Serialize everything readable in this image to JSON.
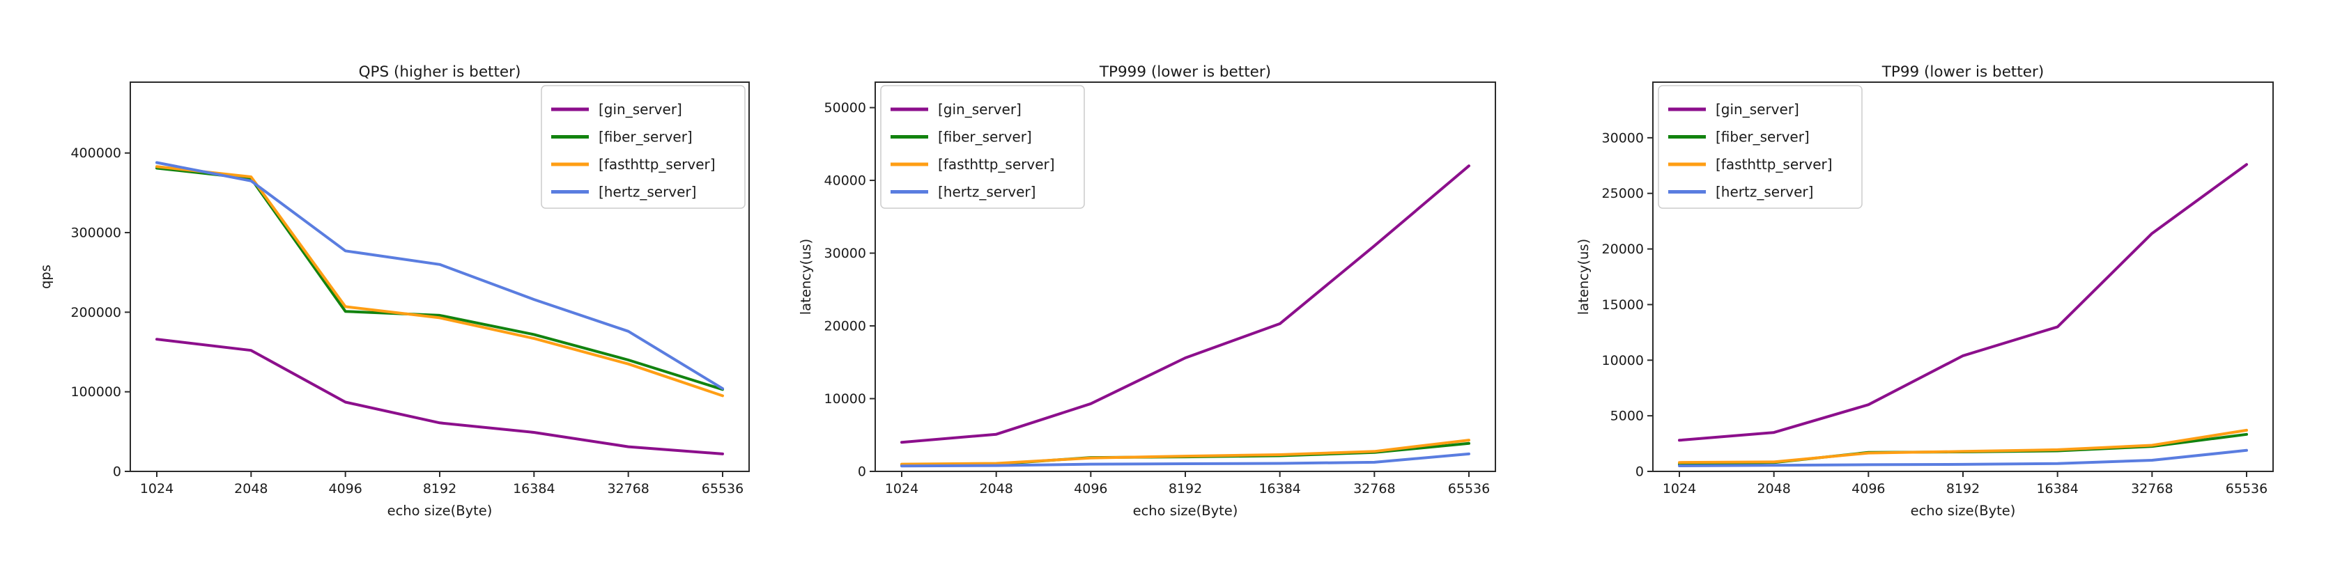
{
  "figure": {
    "background": "#ffffff",
    "text_color": "#1a1a1a",
    "spine_color": "#2b2b2b",
    "legend_border_color": "#cccccc",
    "legend_background": "#ffffff"
  },
  "chart_data": [
    {
      "type": "line",
      "title": "QPS (higher is better)",
      "xlabel": "echo size(Byte)",
      "ylabel": "qps",
      "categories": [
        "1024",
        "2048",
        "4096",
        "8192",
        "16384",
        "32768",
        "65536"
      ],
      "x_scale": "log2-categorical",
      "ylim": [
        0,
        489000
      ],
      "yticks": [
        0,
        100000,
        200000,
        300000,
        400000
      ],
      "grid": false,
      "legend_position": "upper-right",
      "series": [
        {
          "name": "[gin_server]",
          "color": "#8c0f8c",
          "values": [
            166000,
            152000,
            87000,
            61000,
            49000,
            31000,
            22000
          ]
        },
        {
          "name": "[fiber_server]",
          "color": "#12830f",
          "values": [
            381000,
            368000,
            201000,
            196000,
            172000,
            140000,
            103000
          ]
        },
        {
          "name": "[fasthttp_server]",
          "color": "#ff9e14",
          "values": [
            383000,
            370000,
            207000,
            193000,
            167000,
            135000,
            95000
          ]
        },
        {
          "name": "[hertz_server]",
          "color": "#5a7de0",
          "values": [
            388000,
            365000,
            277000,
            260000,
            216000,
            176000,
            104000
          ]
        }
      ]
    },
    {
      "type": "line",
      "title": "TP999 (lower is better)",
      "xlabel": "echo size(Byte)",
      "ylabel": "latency(us)",
      "categories": [
        "1024",
        "2048",
        "4096",
        "8192",
        "16384",
        "32768",
        "65536"
      ],
      "x_scale": "log2-categorical",
      "ylim": [
        0,
        53500
      ],
      "yticks": [
        0,
        10000,
        20000,
        30000,
        40000,
        50000
      ],
      "grid": false,
      "legend_position": "upper-left",
      "series": [
        {
          "name": "[gin_server]",
          "color": "#8c0f8c",
          "values": [
            4000,
            5100,
            9300,
            15600,
            20300,
            31000,
            42000
          ]
        },
        {
          "name": "[fiber_server]",
          "color": "#12830f",
          "values": [
            900,
            1000,
            1900,
            2000,
            2150,
            2600,
            3850
          ]
        },
        {
          "name": "[fasthttp_server]",
          "color": "#ff9e14",
          "values": [
            1000,
            1100,
            1850,
            2100,
            2300,
            2750,
            4300
          ]
        },
        {
          "name": "[hertz_server]",
          "color": "#5a7de0",
          "values": [
            750,
            800,
            1000,
            1050,
            1100,
            1250,
            2400
          ]
        }
      ]
    },
    {
      "type": "line",
      "title": "TP99 (lower is better)",
      "xlabel": "echo size(Byte)",
      "ylabel": "latency(us)",
      "categories": [
        "1024",
        "2048",
        "4096",
        "8192",
        "16384",
        "32768",
        "65536"
      ],
      "x_scale": "log2-categorical",
      "ylim": [
        0,
        35000
      ],
      "yticks": [
        0,
        5000,
        10000,
        15000,
        20000,
        25000,
        30000
      ],
      "grid": false,
      "legend_position": "upper-left",
      "series": [
        {
          "name": "[gin_server]",
          "color": "#8c0f8c",
          "values": [
            2800,
            3500,
            6000,
            10400,
            13000,
            21400,
            27600
          ]
        },
        {
          "name": "[fiber_server]",
          "color": "#12830f",
          "values": [
            650,
            800,
            1700,
            1750,
            1850,
            2250,
            3330
          ]
        },
        {
          "name": "[fasthttp_server]",
          "color": "#ff9e14",
          "values": [
            800,
            850,
            1650,
            1800,
            1950,
            2350,
            3700
          ]
        },
        {
          "name": "[hertz_server]",
          "color": "#5a7de0",
          "values": [
            500,
            550,
            600,
            630,
            700,
            1000,
            1890
          ]
        }
      ]
    }
  ]
}
